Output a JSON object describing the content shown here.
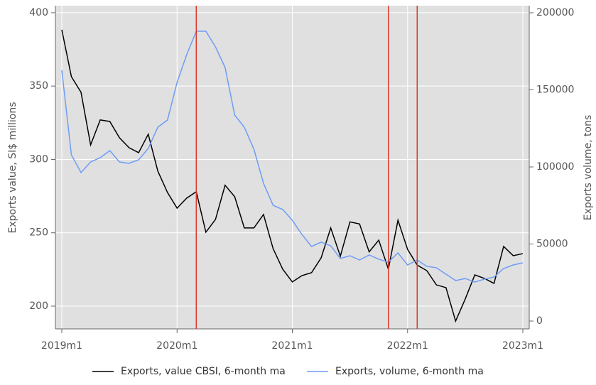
{
  "chart_data": {
    "type": "line",
    "categories": [
      "2019m1",
      null,
      null,
      null,
      null,
      null,
      null,
      null,
      null,
      null,
      null,
      null,
      "2020m1",
      null,
      null,
      null,
      null,
      null,
      null,
      null,
      null,
      null,
      null,
      null,
      "2021m1",
      null,
      null,
      null,
      null,
      null,
      null,
      null,
      null,
      null,
      null,
      null,
      "2022m1",
      null,
      null,
      null,
      null,
      null,
      null,
      null,
      null,
      null,
      null,
      null,
      "2023m1"
    ],
    "ylabel": "Exports value, SI$ millions",
    "y2label": "Exports volume, tons",
    "ylim": [
      184.5,
      404.8
    ],
    "yticks": [
      200,
      250,
      300,
      350,
      400
    ],
    "y2lim": [
      -5070,
      204600
    ],
    "y2ticks": [
      0,
      50000,
      100000,
      150000,
      200000
    ],
    "grid": true,
    "vlines": [
      14,
      34,
      37
    ],
    "vline_color": "#d93a2b",
    "series": [
      {
        "name": "Exports, value CBSI, 6-month ma",
        "color": "#000000",
        "values": [
          388.4,
          356.4,
          345.8,
          309.9,
          326.9,
          325.9,
          314.8,
          308,
          304.6,
          317.2,
          292,
          277.5,
          266.8,
          273.6,
          278,
          250.4,
          259.1,
          282.4,
          274.6,
          253.3,
          253.3,
          262.5,
          239.2,
          225.2,
          216.5,
          220.8,
          222.8,
          232.9,
          253.3,
          234,
          257.4,
          256,
          237,
          245,
          225.2,
          258.6,
          238.7,
          228,
          224.2,
          214.5,
          212.6,
          189.8,
          204.8,
          221.3,
          218.9,
          215.5,
          240.7,
          234.4,
          235.8
        ]
      },
      {
        "name": "Exports, volume, 6-month ma",
        "color": "#6e9cf5",
        "axis": "y2",
        "values": [
          162700,
          107800,
          96300,
          103200,
          106000,
          110600,
          103200,
          102300,
          104600,
          112000,
          125800,
          130400,
          154800,
          172800,
          188000,
          188000,
          177900,
          164500,
          133600,
          125800,
          111500,
          89400,
          75100,
          72400,
          65400,
          56200,
          48400,
          51200,
          48800,
          40600,
          42400,
          39600,
          42900,
          40100,
          38200,
          44200,
          36400,
          39600,
          35500,
          34600,
          30400,
          26300,
          27600,
          25300,
          27200,
          28600,
          34100,
          36400,
          37800
        ]
      }
    ]
  }
}
